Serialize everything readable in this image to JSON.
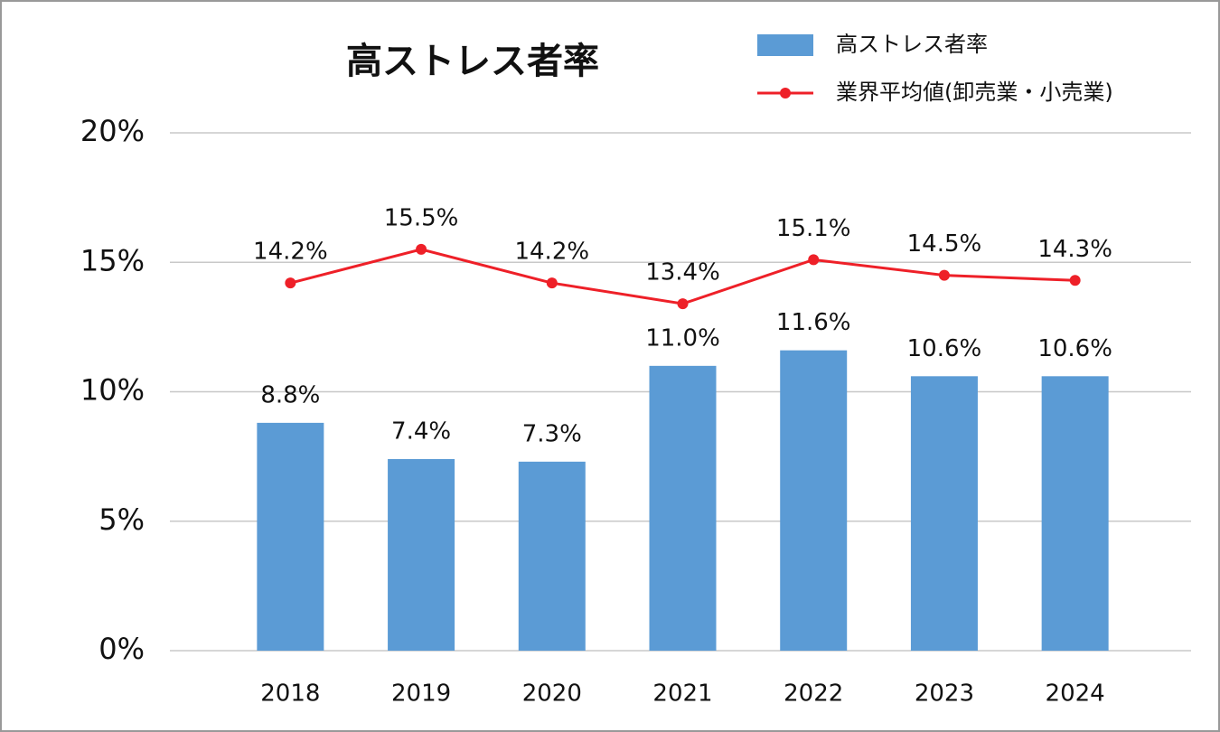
{
  "chart_data": {
    "type": "bar",
    "title": "高ストレス者率",
    "categories": [
      "2018",
      "2019",
      "2020",
      "2021",
      "2022",
      "2023",
      "2024"
    ],
    "series": [
      {
        "name": "高ストレス者率",
        "type": "bar",
        "color": "#5b9bd5",
        "values": [
          8.8,
          7.4,
          7.3,
          11.0,
          11.6,
          10.6,
          10.6
        ],
        "value_labels": [
          "8.8%",
          "7.4%",
          "7.3%",
          "11.0%",
          "11.6%",
          "10.6%",
          "10.6%"
        ]
      },
      {
        "name": "業界平均値(卸売業・小売業)",
        "type": "line",
        "color": "#ee2028",
        "values": [
          14.2,
          15.5,
          14.2,
          13.4,
          15.1,
          14.5,
          14.3
        ],
        "value_labels": [
          "14.2%",
          "15.5%",
          "14.2%",
          "13.4%",
          "15.1%",
          "14.5%",
          "14.3%"
        ]
      }
    ],
    "ylim": [
      0,
      20
    ],
    "yticks": [
      {
        "value": 0,
        "label": "0%"
      },
      {
        "value": 5,
        "label": "5%"
      },
      {
        "value": 10,
        "label": "10%"
      },
      {
        "value": 15,
        "label": "15%"
      },
      {
        "value": 20,
        "label": "20%"
      }
    ],
    "grid": true,
    "legend": "top-right"
  }
}
